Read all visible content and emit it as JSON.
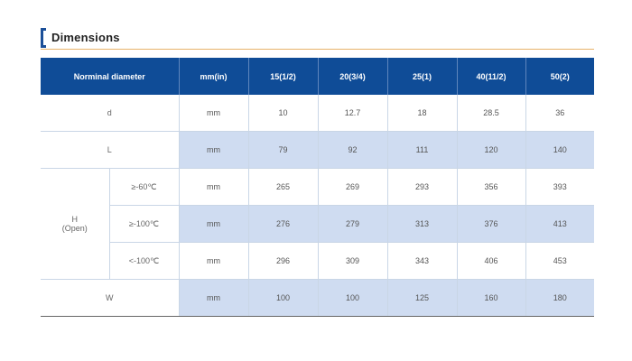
{
  "section": {
    "title": "Dimensions"
  },
  "table": {
    "headers": [
      "Norminal diameter",
      "mm(in)",
      "15(1/2)",
      "20(3/4)",
      "25(1)",
      "40(11/2)",
      "50(2)"
    ],
    "rows": {
      "d": {
        "label": "d",
        "unit": "mm",
        "values": [
          "10",
          "12.7",
          "18",
          "28.5",
          "36"
        ]
      },
      "L": {
        "label": "L",
        "unit": "mm",
        "values": [
          "79",
          "92",
          "111",
          "120",
          "140"
        ]
      },
      "H": {
        "label": "H",
        "label_sub": "(Open)",
        "subrows": [
          {
            "label": "≥-60℃",
            "unit": "mm",
            "values": [
              "265",
              "269",
              "293",
              "356",
              "393"
            ]
          },
          {
            "label": "≥-100℃",
            "unit": "mm",
            "values": [
              "276",
              "279",
              "313",
              "376",
              "413"
            ]
          },
          {
            "label": "<-100℃",
            "unit": "mm",
            "values": [
              "296",
              "309",
              "343",
              "406",
              "453"
            ]
          }
        ]
      },
      "W": {
        "label": "W",
        "unit": "mm",
        "values": [
          "100",
          "100",
          "125",
          "160",
          "180"
        ]
      }
    }
  }
}
